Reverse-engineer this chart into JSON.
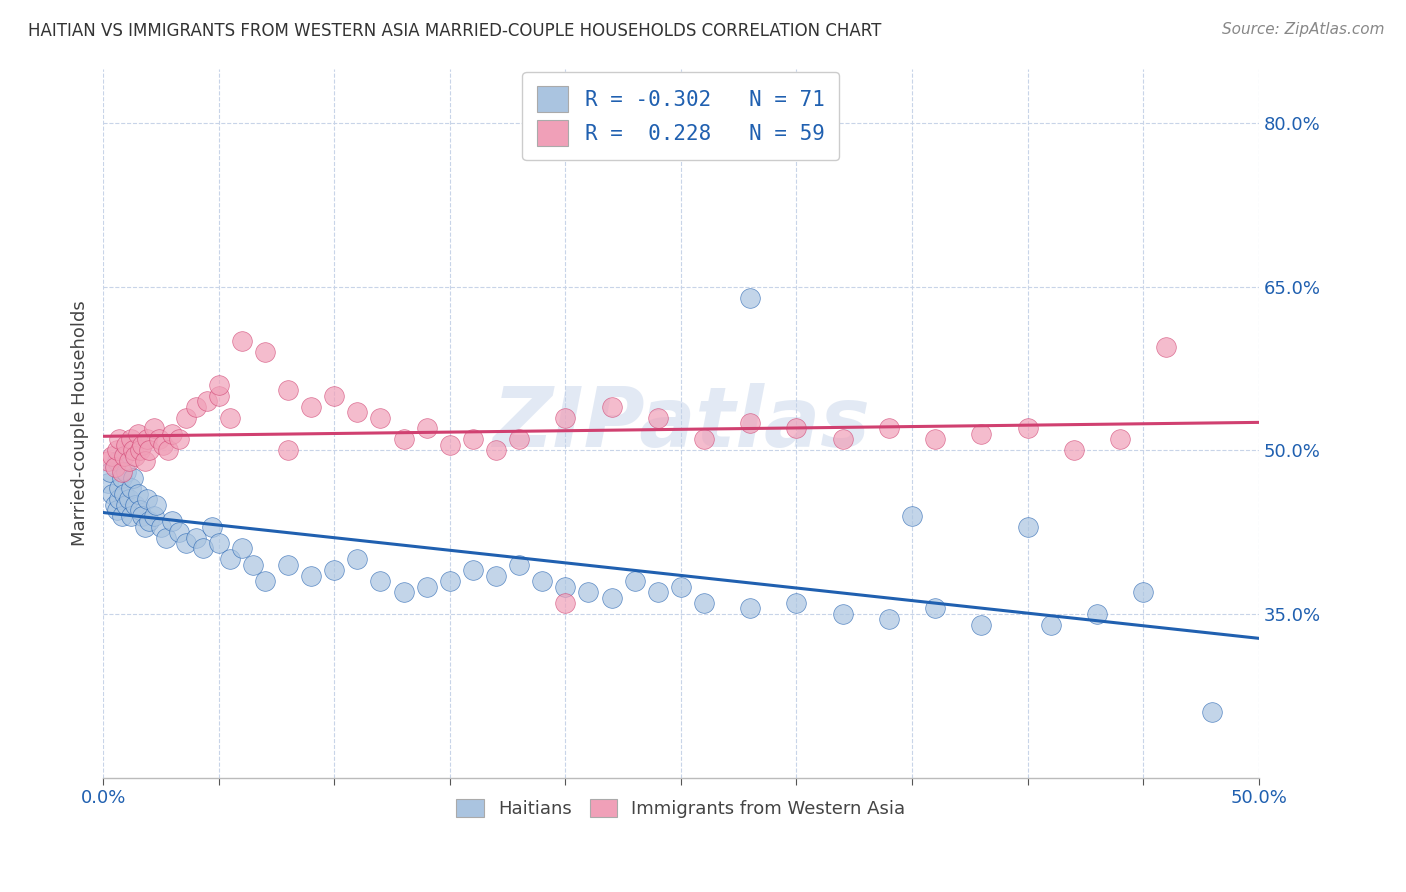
{
  "title": "HAITIAN VS IMMIGRANTS FROM WESTERN ASIA MARRIED-COUPLE HOUSEHOLDS CORRELATION CHART",
  "source": "Source: ZipAtlas.com",
  "ylabel": "Married-couple Households",
  "xlim": [
    0.0,
    0.5
  ],
  "ylim": [
    0.2,
    0.85
  ],
  "ytick_values": [
    0.35,
    0.5,
    0.65,
    0.8
  ],
  "xtick_values": [
    0.0,
    0.05,
    0.1,
    0.15,
    0.2,
    0.25,
    0.3,
    0.35,
    0.4,
    0.45,
    0.5
  ],
  "xtick_label_positions": [
    0.0,
    0.5
  ],
  "blue_R": -0.302,
  "blue_N": 71,
  "pink_R": 0.228,
  "pink_N": 59,
  "blue_color": "#aac4e0",
  "blue_line_color": "#2060b0",
  "pink_color": "#f0a0b8",
  "pink_line_color": "#d04070",
  "legend_text_color": "#2060b0",
  "background_color": "#ffffff",
  "grid_color": "#c8d4e8",
  "title_color": "#333333",
  "source_color": "#888888",
  "watermark": "ZIPatlas",
  "figsize": [
    14.06,
    8.92
  ],
  "dpi": 100,
  "blue_x": [
    0.002,
    0.003,
    0.004,
    0.005,
    0.006,
    0.006,
    0.007,
    0.007,
    0.008,
    0.008,
    0.009,
    0.01,
    0.01,
    0.011,
    0.012,
    0.012,
    0.013,
    0.014,
    0.015,
    0.016,
    0.017,
    0.018,
    0.019,
    0.02,
    0.022,
    0.023,
    0.025,
    0.027,
    0.03,
    0.033,
    0.036,
    0.04,
    0.043,
    0.047,
    0.05,
    0.055,
    0.06,
    0.065,
    0.07,
    0.08,
    0.09,
    0.1,
    0.11,
    0.12,
    0.13,
    0.14,
    0.15,
    0.16,
    0.17,
    0.18,
    0.19,
    0.2,
    0.21,
    0.22,
    0.23,
    0.24,
    0.25,
    0.26,
    0.28,
    0.3,
    0.32,
    0.34,
    0.36,
    0.38,
    0.41,
    0.43,
    0.28,
    0.35,
    0.4,
    0.45,
    0.48
  ],
  "blue_y": [
    0.47,
    0.48,
    0.46,
    0.45,
    0.49,
    0.445,
    0.455,
    0.465,
    0.475,
    0.44,
    0.46,
    0.45,
    0.48,
    0.455,
    0.465,
    0.44,
    0.475,
    0.45,
    0.46,
    0.445,
    0.44,
    0.43,
    0.455,
    0.435,
    0.44,
    0.45,
    0.43,
    0.42,
    0.435,
    0.425,
    0.415,
    0.42,
    0.41,
    0.43,
    0.415,
    0.4,
    0.41,
    0.395,
    0.38,
    0.395,
    0.385,
    0.39,
    0.4,
    0.38,
    0.37,
    0.375,
    0.38,
    0.39,
    0.385,
    0.395,
    0.38,
    0.375,
    0.37,
    0.365,
    0.38,
    0.37,
    0.375,
    0.36,
    0.355,
    0.36,
    0.35,
    0.345,
    0.355,
    0.34,
    0.34,
    0.35,
    0.64,
    0.44,
    0.43,
    0.37,
    0.26
  ],
  "pink_x": [
    0.002,
    0.004,
    0.005,
    0.006,
    0.007,
    0.008,
    0.009,
    0.01,
    0.011,
    0.012,
    0.013,
    0.014,
    0.015,
    0.016,
    0.017,
    0.018,
    0.019,
    0.02,
    0.022,
    0.024,
    0.026,
    0.028,
    0.03,
    0.033,
    0.036,
    0.04,
    0.045,
    0.05,
    0.055,
    0.06,
    0.07,
    0.08,
    0.09,
    0.1,
    0.11,
    0.12,
    0.13,
    0.14,
    0.15,
    0.16,
    0.17,
    0.18,
    0.2,
    0.22,
    0.24,
    0.26,
    0.28,
    0.3,
    0.32,
    0.34,
    0.36,
    0.38,
    0.4,
    0.42,
    0.44,
    0.46,
    0.05,
    0.08,
    0.2
  ],
  "pink_y": [
    0.49,
    0.495,
    0.485,
    0.5,
    0.51,
    0.48,
    0.495,
    0.505,
    0.49,
    0.51,
    0.5,
    0.495,
    0.515,
    0.5,
    0.505,
    0.49,
    0.51,
    0.5,
    0.52,
    0.51,
    0.505,
    0.5,
    0.515,
    0.51,
    0.53,
    0.54,
    0.545,
    0.55,
    0.53,
    0.6,
    0.59,
    0.555,
    0.54,
    0.55,
    0.535,
    0.53,
    0.51,
    0.52,
    0.505,
    0.51,
    0.5,
    0.51,
    0.53,
    0.54,
    0.53,
    0.51,
    0.525,
    0.52,
    0.51,
    0.52,
    0.51,
    0.515,
    0.52,
    0.5,
    0.51,
    0.595,
    0.56,
    0.5,
    0.36
  ]
}
